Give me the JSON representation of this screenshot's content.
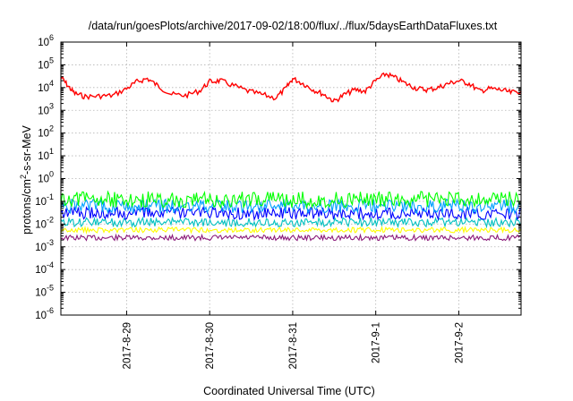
{
  "chart_data": {
    "type": "line",
    "title": "/data/run/goesPlots/archive/2017-09-02/18:00/flux/../flux/5daysEarthDataFluxes.txt",
    "xlabel": "Coordinated Universal Time (UTC)",
    "ylabel": "protons/cm²-s-sr-MeV",
    "ylabel_parts": {
      "pre": "protons/cm",
      "sup": "2",
      "post": "-s-sr-MeV"
    },
    "yscale": "log",
    "ylim": [
      1e-06,
      1000000.0
    ],
    "y_ticks": [
      {
        "base": "10",
        "exp": "-6"
      },
      {
        "base": "10",
        "exp": "-5"
      },
      {
        "base": "10",
        "exp": "-4"
      },
      {
        "base": "10",
        "exp": "-3"
      },
      {
        "base": "10",
        "exp": "-2"
      },
      {
        "base": "10",
        "exp": "-1"
      },
      {
        "base": "10",
        "exp": "0"
      },
      {
        "base": "10",
        "exp": "1"
      },
      {
        "base": "10",
        "exp": "2"
      },
      {
        "base": "10",
        "exp": "3"
      },
      {
        "base": "10",
        "exp": "4"
      },
      {
        "base": "10",
        "exp": "5"
      },
      {
        "base": "10",
        "exp": "6"
      }
    ],
    "xlim": [
      "2017-08-28T05:00",
      "2017-09-02T18:00"
    ],
    "x_ticks": [
      {
        "label": "2017-8-29",
        "date": "2017-08-29"
      },
      {
        "label": "2017-8-30",
        "date": "2017-08-30"
      },
      {
        "label": "2017-8-31",
        "date": "2017-08-31"
      },
      {
        "label": "2017-9-1",
        "date": "2017-09-01"
      },
      {
        "label": "2017-9-2",
        "date": "2017-09-02"
      }
    ],
    "grid": true,
    "series": [
      {
        "color": "#ff0000",
        "points": [
          [
            "2017-08-28T05:00",
            30000
          ],
          [
            "2017-08-28T07:00",
            12000
          ],
          [
            "2017-08-28T09:00",
            5500
          ],
          [
            "2017-08-28T12:00",
            4000
          ],
          [
            "2017-08-28T16:00",
            4200
          ],
          [
            "2017-08-28T20:00",
            4500
          ],
          [
            "2017-08-29T00:00",
            9000
          ],
          [
            "2017-08-29T03:00",
            18000
          ],
          [
            "2017-08-29T06:00",
            25000
          ],
          [
            "2017-08-29T09:00",
            12000
          ],
          [
            "2017-08-29T13:00",
            5000
          ],
          [
            "2017-08-29T17:00",
            4500
          ],
          [
            "2017-08-29T21:00",
            7000
          ],
          [
            "2017-08-30T00:00",
            18000
          ],
          [
            "2017-08-30T03:00",
            20000
          ],
          [
            "2017-08-30T07:00",
            12000
          ],
          [
            "2017-08-30T11:00",
            7000
          ],
          [
            "2017-08-30T15:00",
            5000
          ],
          [
            "2017-08-30T19:00",
            3500
          ],
          [
            "2017-08-30T22:00",
            9000
          ],
          [
            "2017-08-31T00:00",
            25000
          ],
          [
            "2017-08-31T03:00",
            15000
          ],
          [
            "2017-08-31T06:00",
            8000
          ],
          [
            "2017-08-31T09:00",
            5000
          ],
          [
            "2017-08-31T12:00",
            2500
          ],
          [
            "2017-08-31T15:00",
            5000
          ],
          [
            "2017-08-31T18:00",
            8000
          ],
          [
            "2017-08-31T21:00",
            7000
          ],
          [
            "2017-09-01T00:00",
            20000
          ],
          [
            "2017-09-01T03:00",
            40000
          ],
          [
            "2017-09-01T06:00",
            25000
          ],
          [
            "2017-09-01T09:00",
            14000
          ],
          [
            "2017-09-01T12:00",
            9000
          ],
          [
            "2017-09-01T15:00",
            8000
          ],
          [
            "2017-09-01T18:00",
            10000
          ],
          [
            "2017-09-01T21:00",
            15000
          ],
          [
            "2017-09-02T00:00",
            20000
          ],
          [
            "2017-09-02T03:00",
            15000
          ],
          [
            "2017-09-02T06:00",
            7000
          ],
          [
            "2017-09-02T09:00",
            9000
          ],
          [
            "2017-09-02T12:00",
            8000
          ],
          [
            "2017-09-02T15:00",
            6000
          ],
          [
            "2017-09-02T18:00",
            7000
          ]
        ]
      },
      {
        "color": "#00ff00",
        "points": [
          [
            "2017-08-28T05:00",
            0.12
          ],
          [
            "2017-09-02T18:00",
            0.12
          ]
        ]
      },
      {
        "color": "#00a0ff",
        "points": [
          [
            "2017-08-28T05:00",
            0.06
          ],
          [
            "2017-09-02T18:00",
            0.06
          ]
        ]
      },
      {
        "color": "#0000ff",
        "points": [
          [
            "2017-08-28T05:00",
            0.03
          ],
          [
            "2017-09-02T18:00",
            0.03
          ]
        ]
      },
      {
        "color": "#00c0c0",
        "points": [
          [
            "2017-08-28T05:00",
            0.012
          ],
          [
            "2017-09-02T18:00",
            0.012
          ]
        ]
      },
      {
        "color": "#ffff00",
        "points": [
          [
            "2017-08-28T05:00",
            0.0055
          ],
          [
            "2017-09-02T18:00",
            0.0055
          ]
        ]
      },
      {
        "color": "#8b1a7a",
        "points": [
          [
            "2017-08-28T05:00",
            0.0025
          ],
          [
            "2017-09-02T18:00",
            0.0025
          ]
        ]
      }
    ]
  }
}
